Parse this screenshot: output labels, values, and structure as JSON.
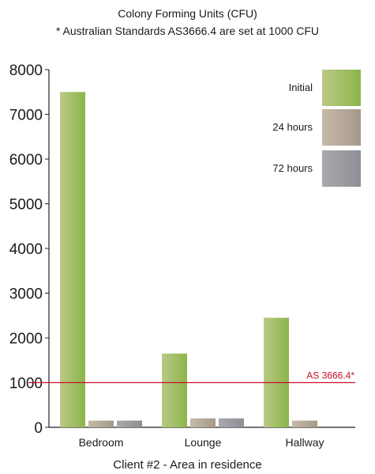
{
  "chart_data": {
    "type": "bar",
    "title": "Colony Forming Units (CFU)",
    "subtitle": "* Australian Standards AS3666.4 are set at 1000 CFU",
    "xlabel": "Client #2 - Area in residence",
    "ylabel": "",
    "ylim": [
      0,
      8000
    ],
    "yticks": [
      0,
      1000,
      2000,
      3000,
      4000,
      5000,
      6000,
      7000,
      8000
    ],
    "categories": [
      "Bedroom",
      "Lounge",
      "Hallway"
    ],
    "series": [
      {
        "name": "Initial",
        "values": [
          7500,
          1650,
          2450
        ],
        "color": "#8db54a",
        "color_light": "#b9c986"
      },
      {
        "name": "24 hours",
        "values": [
          150,
          200,
          150
        ],
        "color": "#a6998a",
        "color_light": "#c6b9a8"
      },
      {
        "name": "72 hours",
        "values": [
          150,
          200,
          0
        ],
        "color": "#8e8f94",
        "color_light": "#a8a9ae"
      }
    ],
    "reference_line": {
      "value": 1000,
      "label": "AS 3666.4*",
      "color": "#c8102e"
    },
    "grid": false,
    "legend": "top-right"
  }
}
